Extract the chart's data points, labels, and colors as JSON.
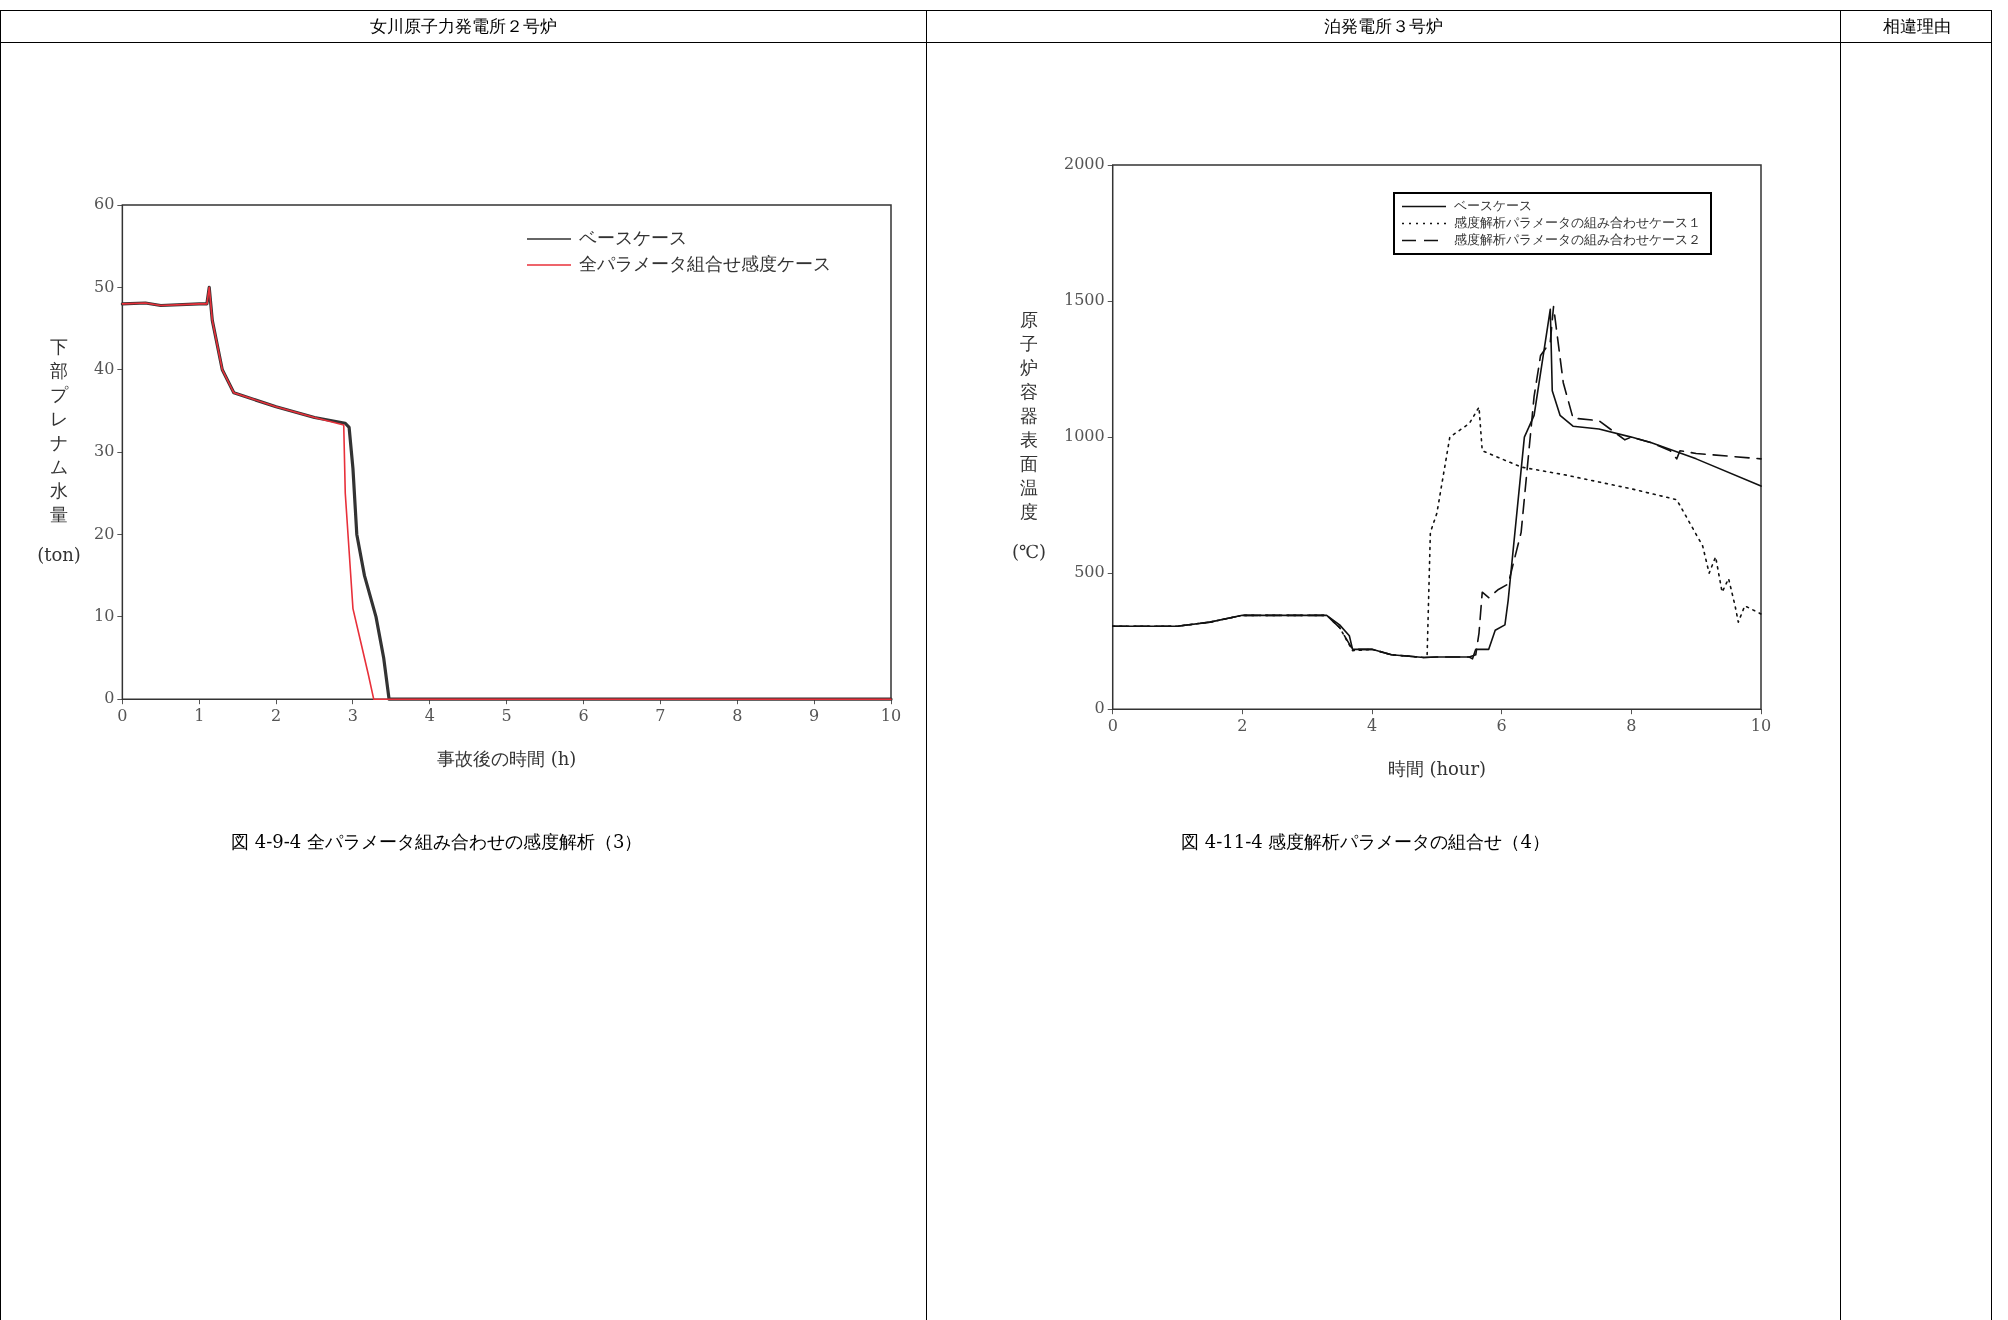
{
  "chart_data": [
    {
      "type": "line",
      "title": "女川原子力発電所２号炉",
      "xlabel": "事故後の時間 (h)",
      "ylabel": "下部プレナム水量(ton)",
      "annotations": [
        "図 4-9-4 全パラメータ組み合わせの感度解析（3）"
      ],
      "xlim": [
        0,
        10
      ],
      "xticks": [
        0,
        1,
        2,
        3,
        4,
        5,
        6,
        7,
        8,
        9,
        10
      ],
      "ylim": [
        0,
        60
      ],
      "yticks": [
        0,
        10,
        20,
        30,
        40,
        50,
        60
      ],
      "grid": false,
      "legend": "top right",
      "marker": "none",
      "series": [
        {
          "name": "ベースケース",
          "color": "#333333",
          "line_style": "solid",
          "x": [
            0,
            0.3,
            0.5,
            1.0,
            1.1,
            1.13,
            1.17,
            1.3,
            1.45,
            2,
            2.5,
            2.9,
            2.95,
            3.0,
            3.05,
            3.15,
            3.3,
            3.4,
            3.47,
            10
          ],
          "values": [
            48,
            48.1,
            47.8,
            48,
            48,
            50,
            46,
            40,
            37.2,
            35.5,
            34.2,
            33.5,
            33,
            28,
            20,
            15,
            10,
            5,
            0,
            0
          ]
        },
        {
          "name": "全パラメータ組合せ感度ケース",
          "color": "#e8303a",
          "line_style": "solid",
          "x": [
            0,
            0.3,
            0.5,
            1.0,
            1.1,
            1.13,
            1.17,
            1.3,
            1.45,
            2,
            2.5,
            2.88,
            2.9,
            2.95,
            3.0,
            3.1,
            3.2,
            3.27,
            10
          ],
          "values": [
            48,
            48.1,
            47.8,
            48,
            48,
            50,
            46,
            40,
            37.2,
            35.5,
            34.2,
            33.3,
            25,
            18,
            11,
            7,
            3,
            0,
            0
          ]
        }
      ]
    },
    {
      "type": "line",
      "title": "泊発電所３号炉",
      "xlabel": "時間 (hour)",
      "ylabel": "原子炉容器表面温度(℃)",
      "annotations": [
        "図 4-11-4 感度解析パラメータの組合せ（4）"
      ],
      "xlim": [
        0,
        10
      ],
      "xticks": [
        0,
        2,
        4,
        6,
        8,
        10
      ],
      "ylim": [
        0,
        2000
      ],
      "yticks": [
        0,
        500,
        1000,
        1500,
        2000
      ],
      "grid": false,
      "legend": "top right",
      "marker": "none",
      "series": [
        {
          "name": "ベースケース",
          "color": "#111111",
          "line_style": "solid",
          "x": [
            0,
            1,
            1.5,
            2,
            3.3,
            3.5,
            3.65,
            3.7,
            4,
            4.3,
            4.8,
            5.0,
            5.5,
            5.55,
            5.6,
            5.8,
            5.9,
            6.05,
            6.1,
            6.35,
            6.5,
            6.75,
            6.78,
            6.9,
            7.1,
            7.5,
            8,
            8.3,
            9,
            10
          ],
          "values": [
            305,
            305,
            320,
            345,
            345,
            310,
            270,
            220,
            220,
            200,
            190,
            192,
            192,
            185,
            220,
            220,
            290,
            310,
            400,
            1000,
            1080,
            1470,
            1170,
            1080,
            1040,
            1030,
            1000,
            980,
            920,
            820
          ]
        },
        {
          "name": "感度解析パラメータの組み合わせケース１",
          "color": "#111111",
          "line_style": "dotted",
          "x": [
            0,
            1,
            1.5,
            2,
            3.3,
            3.5,
            3.7,
            4,
            4.3,
            4.8,
            4.85,
            4.9,
            5.0,
            5.2,
            5.5,
            5.65,
            5.7,
            6.3,
            7,
            8,
            8.7,
            9.1,
            9.2,
            9.3,
            9.4,
            9.5,
            9.6,
            9.65,
            9.75,
            10
          ],
          "values": [
            305,
            305,
            320,
            345,
            345,
            300,
            215,
            220,
            200,
            190,
            200,
            650,
            720,
            1000,
            1050,
            1110,
            950,
            890,
            860,
            810,
            770,
            600,
            500,
            560,
            430,
            480,
            380,
            320,
            380,
            350
          ]
        },
        {
          "name": "感度解析パラメータの組み合わせケース２",
          "color": "#111111",
          "line_style": "dashed",
          "x": [
            0,
            1,
            1.5,
            2,
            3.3,
            3.5,
            3.7,
            4,
            4.3,
            4.8,
            5.0,
            5.5,
            5.6,
            5.65,
            5.7,
            5.8,
            5.95,
            6.1,
            6.3,
            6.4,
            6.5,
            6.6,
            6.75,
            6.8,
            6.95,
            7.1,
            7.5,
            7.9,
            8.0,
            8.3,
            8.6,
            8.7,
            8.75,
            9,
            10
          ],
          "values": [
            305,
            305,
            320,
            345,
            345,
            300,
            220,
            220,
            200,
            190,
            192,
            192,
            200,
            280,
            430,
            410,
            440,
            460,
            650,
            900,
            1150,
            1300,
            1350,
            1480,
            1200,
            1070,
            1060,
            990,
            1000,
            980,
            950,
            920,
            950,
            940,
            920
          ]
        }
      ]
    },
    {
      "type": "other",
      "title": "相違理由"
    }
  ]
}
